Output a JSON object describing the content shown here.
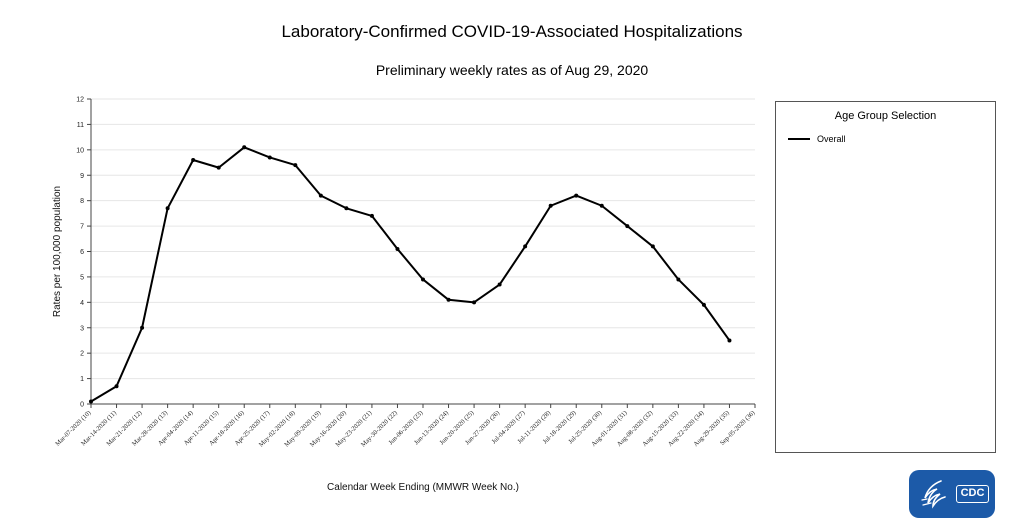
{
  "header": {
    "title": "Laboratory-Confirmed COVID-19-Associated Hospitalizations",
    "subtitle": "Preliminary weekly rates as of Aug 29, 2020"
  },
  "legend": {
    "title": "Age Group Selection",
    "items": [
      {
        "label": "Overall",
        "color": "#000000"
      }
    ]
  },
  "logo": {
    "text": "CDC"
  },
  "chart_data": {
    "type": "line",
    "title": "Laboratory-Confirmed COVID-19-Associated Hospitalizations",
    "subtitle": "Preliminary weekly rates as of Aug 29, 2020",
    "xlabel": "Calendar Week Ending (MMWR Week No.)",
    "ylabel": "Rates per 100,000 population",
    "ylim": [
      0,
      12
    ],
    "yticks": [
      0,
      1,
      2,
      3,
      4,
      5,
      6,
      7,
      8,
      9,
      10,
      11,
      12
    ],
    "grid": true,
    "legend_position": "right",
    "categories": [
      "Mar-07-2020 (10)",
      "Mar-14-2020 (11)",
      "Mar-21-2020 (12)",
      "Mar-28-2020 (13)",
      "Apr-04-2020 (14)",
      "Apr-11-2020 (15)",
      "Apr-18-2020 (16)",
      "Apr-25-2020 (17)",
      "May-02-2020 (18)",
      "May-09-2020 (19)",
      "May-16-2020 (20)",
      "May-23-2020 (21)",
      "May-30-2020 (22)",
      "Jun-06-2020 (23)",
      "Jun-13-2020 (24)",
      "Jun-20-2020 (25)",
      "Jun-27-2020 (26)",
      "Jul-04-2020 (27)",
      "Jul-11-2020 (28)",
      "Jul-18-2020 (29)",
      "Jul-25-2020 (30)",
      "Aug-01-2020 (31)",
      "Aug-08-2020 (32)",
      "Aug-15-2020 (33)",
      "Aug-22-2020 (34)",
      "Aug-29-2020 (35)",
      "Sep-05-2020 (36)"
    ],
    "series": [
      {
        "name": "Overall",
        "color": "#000000",
        "values": [
          0.1,
          0.7,
          3.0,
          7.7,
          9.6,
          9.3,
          10.1,
          9.7,
          9.4,
          8.2,
          7.7,
          7.4,
          6.1,
          4.9,
          4.1,
          4.0,
          4.7,
          6.2,
          7.8,
          8.2,
          7.8,
          7.0,
          6.2,
          4.9,
          3.9,
          2.5,
          null
        ]
      }
    ]
  }
}
